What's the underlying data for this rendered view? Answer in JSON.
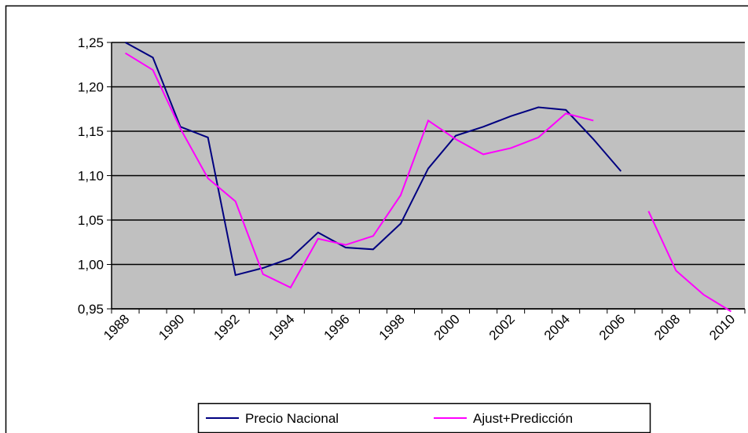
{
  "chart_data": {
    "type": "line",
    "categories": [
      "1988",
      null,
      "1990",
      null,
      "1992",
      null,
      "1994",
      null,
      "1996",
      null,
      "1998",
      null,
      "2000",
      null,
      "2002",
      null,
      "2004",
      null,
      "2006",
      null,
      "2008",
      null,
      "2010"
    ],
    "series": [
      {
        "name": "Precio Nacional",
        "color": "#000080",
        "values": [
          1.25,
          1.233,
          1.155,
          1.143,
          0.988,
          0.996,
          1.007,
          1.036,
          1.019,
          1.017,
          1.046,
          1.108,
          1.145,
          1.155,
          1.167,
          1.177,
          1.174,
          1.141,
          1.105,
          null,
          null,
          null,
          null
        ]
      },
      {
        "name": "Ajust+Predicción",
        "color": "#ff00ff",
        "values": [
          1.238,
          1.219,
          1.153,
          1.097,
          1.071,
          0.989,
          0.974,
          1.029,
          1.022,
          1.032,
          1.078,
          1.162,
          1.141,
          1.124,
          1.131,
          1.143,
          1.17,
          1.162,
          null,
          1.06,
          0.993,
          0.966,
          0.947
        ]
      }
    ],
    "ylim": [
      0.95,
      1.25
    ],
    "yticks": [
      {
        "value": 0.95,
        "label": "0,95"
      },
      {
        "value": 1.0,
        "label": "1,00"
      },
      {
        "value": 1.05,
        "label": "1,05"
      },
      {
        "value": 1.1,
        "label": "1,10"
      },
      {
        "value": 1.15,
        "label": "1,15"
      },
      {
        "value": 1.2,
        "label": "1,20"
      },
      {
        "value": 1.25,
        "label": "1,25"
      }
    ],
    "grid": true,
    "legend": "bottom",
    "background": "#c0c0c0"
  }
}
